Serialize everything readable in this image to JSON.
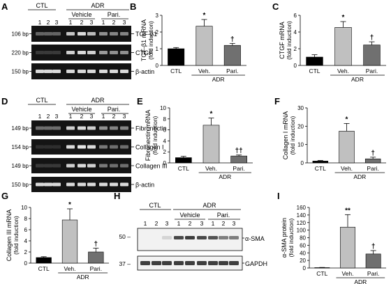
{
  "panels": {
    "A": {
      "letter": "A",
      "groups": {
        "ctl": "CTL",
        "adr": "ADR",
        "vehicle": "Vehicle",
        "pari": "Pari."
      },
      "lanes": [
        "1",
        "2",
        "3",
        "1",
        "2",
        "3",
        "1",
        "2",
        "3"
      ],
      "bands": [
        {
          "size": "106 bp",
          "label": "TGF-β1",
          "intensity": [
            0.3,
            0.3,
            0.3,
            0.75,
            0.85,
            0.7,
            0.5,
            0.45,
            0.45
          ]
        },
        {
          "size": "220 bp",
          "label": "CTGF",
          "intensity": [
            0.1,
            0.1,
            0.1,
            0.8,
            0.85,
            0.8,
            0.55,
            0.5,
            0.5
          ]
        },
        {
          "size": "150 bp",
          "label": "β-actin",
          "intensity": [
            0.85,
            0.85,
            0.85,
            0.85,
            0.85,
            0.85,
            0.85,
            0.85,
            0.85
          ]
        }
      ]
    },
    "D": {
      "letter": "D",
      "groups": {
        "ctl": "CTL",
        "adr": "ADR",
        "vehicle": "Vehicle",
        "pari": "Pari."
      },
      "lanes": [
        "1",
        "2",
        "3",
        "1",
        "2",
        "3",
        "1",
        "2",
        "3"
      ],
      "bands": [
        {
          "size": "149 bp",
          "label": "Fibronectin",
          "intensity": [
            0.35,
            0.35,
            0.35,
            0.8,
            0.85,
            0.8,
            0.5,
            0.45,
            0.45
          ]
        },
        {
          "size": "154 bp",
          "label": "Collagen I",
          "intensity": [
            0.05,
            0.05,
            0.05,
            0.85,
            0.9,
            0.85,
            0.4,
            0.35,
            0.35
          ]
        },
        {
          "size": "149 bp",
          "label": "Collagen III",
          "intensity": [
            0.1,
            0.1,
            0.1,
            0.8,
            0.85,
            0.8,
            0.4,
            0.35,
            0.35
          ]
        },
        {
          "size": "150 bp",
          "label": "β-actin",
          "intensity": [
            0.85,
            0.85,
            0.85,
            0.85,
            0.85,
            0.85,
            0.85,
            0.85,
            0.85
          ]
        }
      ]
    },
    "H": {
      "letter": "H",
      "groups": {
        "ctl": "CTL",
        "adr": "ADR",
        "vehicle": "Vehicle",
        "pari": "Pari."
      },
      "lanes": [
        "1",
        "2",
        "3",
        "1",
        "2",
        "3",
        "1",
        "2",
        "3"
      ],
      "markers": [
        "50 –",
        "37 –"
      ],
      "bands": [
        {
          "label": "α-SMA",
          "intensity": [
            0.0,
            0.0,
            0.15,
            0.8,
            0.85,
            0.8,
            0.75,
            0.55,
            0.55
          ]
        },
        {
          "label": "GAPDH",
          "intensity": [
            0.85,
            0.85,
            0.85,
            0.85,
            0.85,
            0.85,
            0.85,
            0.85,
            0.85
          ]
        }
      ]
    }
  },
  "chart_data": [
    {
      "panel": "B",
      "type": "bar",
      "categories": [
        "CTL",
        "Veh.",
        "Pari."
      ],
      "group_label": "ADR",
      "values": [
        1.0,
        2.35,
        1.2
      ],
      "errors": [
        0.07,
        0.4,
        0.12
      ],
      "sig": [
        "",
        "*",
        "†"
      ],
      "ylabel": "TGF-β1 mRNA",
      "ylabel2": "(fold induction)",
      "ylim": [
        0,
        3
      ],
      "yticks": [
        "0",
        "1",
        "2",
        "3"
      ],
      "colors": [
        "#000000",
        "#c0c0c0",
        "#707070"
      ]
    },
    {
      "panel": "C",
      "type": "bar",
      "categories": [
        "CTL",
        "Veh.",
        "Pari."
      ],
      "group_label": "ADR",
      "values": [
        1.0,
        4.55,
        2.45
      ],
      "errors": [
        0.28,
        0.7,
        0.38
      ],
      "sig": [
        "",
        "*",
        "†"
      ],
      "ylabel": "CTGF mRNA",
      "ylabel2": "(fold induction)",
      "ylim": [
        0,
        6
      ],
      "yticks": [
        "0",
        "2",
        "4",
        "6"
      ],
      "colors": [
        "#000000",
        "#c0c0c0",
        "#707070"
      ]
    },
    {
      "panel": "E",
      "type": "bar",
      "categories": [
        "CTL",
        "Veh.",
        "Pari."
      ],
      "group_label": "ADR",
      "values": [
        0.95,
        6.85,
        1.25
      ],
      "errors": [
        0.25,
        1.3,
        0.18
      ],
      "sig": [
        "",
        "*",
        "††"
      ],
      "ylabel": "Fibronectin mRNA",
      "ylabel2": "(fold induction)",
      "ylim": [
        0,
        10
      ],
      "yticks": [
        "0",
        "2",
        "4",
        "6",
        "8",
        "10"
      ],
      "colors": [
        "#000000",
        "#c0c0c0",
        "#707070"
      ]
    },
    {
      "panel": "F",
      "type": "bar",
      "categories": [
        "CTL",
        "Veh.",
        "Pari."
      ],
      "group_label": "ADR",
      "values": [
        1.0,
        17.3,
        2.2
      ],
      "errors": [
        0.3,
        4.2,
        0.9
      ],
      "sig": [
        "",
        "*",
        "†"
      ],
      "ylabel": "Collagen I mRNA",
      "ylabel2": "(fold induction)",
      "ylim": [
        0,
        30
      ],
      "yticks": [
        "0",
        "10",
        "20",
        "30"
      ],
      "colors": [
        "#000000",
        "#c0c0c0",
        "#707070"
      ]
    },
    {
      "panel": "G",
      "type": "bar",
      "categories": [
        "CTL",
        "Veh.",
        "Pari."
      ],
      "group_label": "ADR",
      "values": [
        1.0,
        7.75,
        2.0
      ],
      "errors": [
        0.15,
        2.0,
        0.7
      ],
      "sig": [
        "",
        "*",
        "†"
      ],
      "ylabel": "Collagen III mRNA",
      "ylabel2": "(fold induction)",
      "ylim": [
        0,
        10
      ],
      "yticks": [
        "0",
        "2",
        "4",
        "6",
        "8",
        "10"
      ],
      "colors": [
        "#000000",
        "#c0c0c0",
        "#707070"
      ]
    },
    {
      "panel": "I",
      "type": "bar",
      "categories": [
        "CTL",
        "Veh.",
        "Pari."
      ],
      "group_label": "ADR",
      "values": [
        1.0,
        108,
        37
      ],
      "errors": [
        0.5,
        33,
        9
      ],
      "sig": [
        "",
        "**",
        "†"
      ],
      "ylabel": "α-SMA protein",
      "ylabel2": "(fold induction)",
      "ylim": [
        0,
        160
      ],
      "yticks": [
        "0",
        "20",
        "40",
        "60",
        "80",
        "100",
        "120",
        "140",
        "160"
      ],
      "colors": [
        "#000000",
        "#c0c0c0",
        "#707070"
      ]
    }
  ]
}
